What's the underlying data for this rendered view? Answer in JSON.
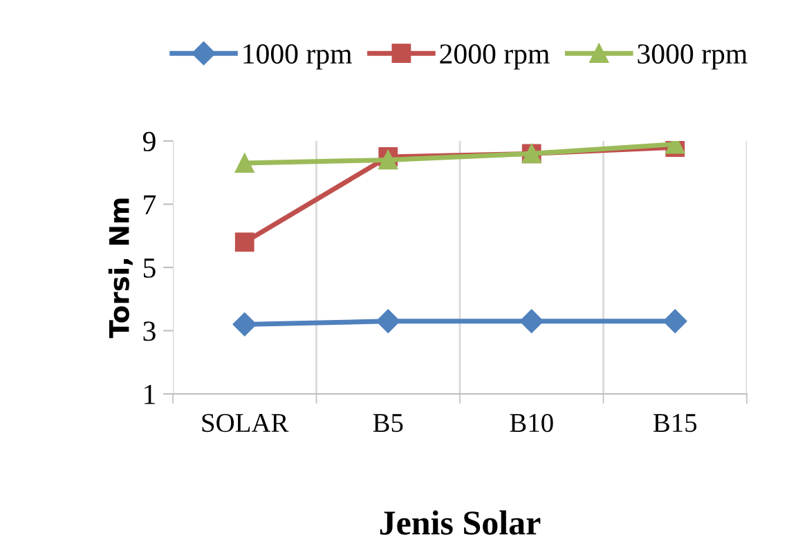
{
  "chart_data": {
    "type": "line",
    "xlabel": "Jenis Solar",
    "ylabel": "Torsi, Nm",
    "categories": [
      "SOLAR",
      "B5",
      "B10",
      "B15"
    ],
    "series": [
      {
        "name": "1000 rpm",
        "color": "#4f81bd",
        "marker": "diamond",
        "values": [
          3.2,
          3.3,
          3.3,
          3.3
        ]
      },
      {
        "name": "2000 rpm",
        "color": "#c0504d",
        "marker": "square",
        "values": [
          5.8,
          8.5,
          8.6,
          8.8
        ]
      },
      {
        "name": "3000 rpm",
        "color": "#9bbb59",
        "marker": "triangle",
        "values": [
          8.3,
          8.4,
          8.6,
          8.9
        ]
      }
    ],
    "ylim": [
      1,
      9
    ],
    "yticks": [
      1,
      3,
      5,
      7,
      9
    ],
    "grid": "x",
    "legend": "top",
    "line_style": "solid"
  }
}
